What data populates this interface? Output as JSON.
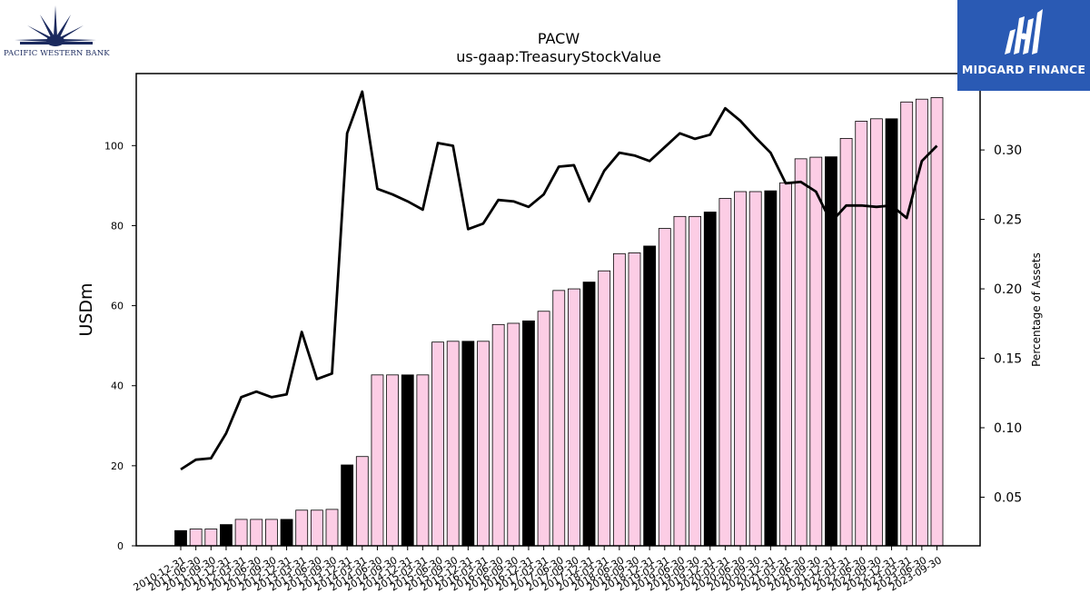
{
  "logos": {
    "left": {
      "text": "PACIFIC WESTERN BANK",
      "color": "#1b2a5e"
    },
    "right": {
      "text": "MIDGARD FINANCE",
      "color": "#2a5ab4"
    }
  },
  "chart_data": {
    "type": "bar",
    "title": "PACW",
    "subtitle": "us-gaap:TreasuryStockValue",
    "ylabel": "USDm",
    "y2label": "Percentage of Assets",
    "ylim": [
      0,
      118
    ],
    "y2lim": [
      0.015,
      0.355
    ],
    "yticks": [
      0,
      20,
      40,
      60,
      80,
      100
    ],
    "y2ticks": [
      0.05,
      0.1,
      0.15,
      0.2,
      0.25,
      0.3
    ],
    "y2tick_labels": [
      "0.05",
      "0.10",
      "0.15",
      "0.20",
      "0.25",
      "0.30"
    ],
    "colors": {
      "bar_q4": "#000000",
      "bar_other": "#fccde5",
      "bar_edge": "#000000",
      "line": "#000000"
    },
    "categories": [
      "2010-12-31",
      "2011-06-30",
      "2011-09-30",
      "2011-12-31",
      "2012-03-31",
      "2012-06-30",
      "2012-09-30",
      "2012-12-31",
      "2013-03-31",
      "2013-06-30",
      "2013-09-30",
      "2013-12-31",
      "2014-03-31",
      "2014-06-30",
      "2014-09-30",
      "2014-12-31",
      "2015-03-31",
      "2015-06-30",
      "2015-09-30",
      "2015-12-31",
      "2016-03-31",
      "2016-06-30",
      "2016-09-30",
      "2016-12-31",
      "2017-03-31",
      "2017-06-30",
      "2017-09-30",
      "2017-12-31",
      "2018-03-31",
      "2018-06-30",
      "2018-09-30",
      "2018-12-31",
      "2019-03-31",
      "2019-06-30",
      "2019-09-30",
      "2019-12-31",
      "2020-03-31",
      "2020-06-30",
      "2020-09-30",
      "2020-12-31",
      "2021-03-31",
      "2021-06-30",
      "2021-09-30",
      "2021-12-31",
      "2022-03-31",
      "2022-06-30",
      "2022-09-30",
      "2022-12-31",
      "2023-03-31",
      "2023-06-30",
      "2023-09-30"
    ],
    "series": [
      {
        "type": "bar",
        "values": [
          3.8,
          4.2,
          4.2,
          5.3,
          6.6,
          6.6,
          6.6,
          6.6,
          8.9,
          8.9,
          9.1,
          20.2,
          22.3,
          42.7,
          42.7,
          42.7,
          42.7,
          50.9,
          51.1,
          51.1,
          51.1,
          55.3,
          55.6,
          56.2,
          58.6,
          63.8,
          64.2,
          65.9,
          68.7,
          73.0,
          73.2,
          74.9,
          79.3,
          82.3,
          82.3,
          83.4,
          86.8,
          88.5,
          88.5,
          88.7,
          90.7,
          96.7,
          97.1,
          97.2,
          101.8,
          106.1,
          106.7,
          106.7,
          110.9,
          111.6,
          112.0
        ]
      },
      {
        "type": "line",
        "values": [
          0.07,
          0.077,
          0.078,
          0.096,
          0.122,
          0.126,
          0.122,
          0.124,
          0.169,
          0.135,
          0.139,
          0.312,
          0.342,
          0.272,
          0.268,
          0.263,
          0.257,
          0.305,
          0.303,
          0.243,
          0.247,
          0.264,
          0.263,
          0.259,
          0.268,
          0.288,
          0.289,
          0.263,
          0.285,
          0.298,
          0.296,
          0.292,
          0.302,
          0.312,
          0.308,
          0.311,
          0.33,
          0.321,
          0.309,
          0.298,
          0.276,
          0.277,
          0.27,
          0.248,
          0.26,
          0.26,
          0.259,
          0.26,
          0.251,
          0.292,
          0.303
        ]
      }
    ]
  }
}
